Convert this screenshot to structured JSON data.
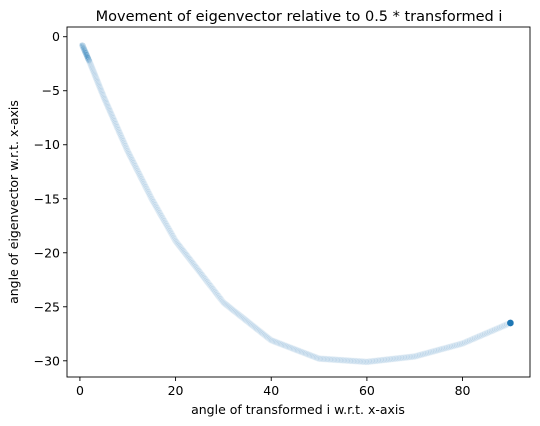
{
  "chart_data": {
    "type": "scatter",
    "title": "Movement of eigenvector relative to 0.5 * transformed i",
    "xlabel": "angle of transformed i w.r.t. x-axis",
    "ylabel": "angle of eigenvector w.r.t. x-axis",
    "xlim": [
      -2.7,
      94.1
    ],
    "ylim": [
      -31.5,
      0.9
    ],
    "xticks": [
      0,
      20,
      40,
      60,
      80
    ],
    "yticks": [
      0,
      -5,
      -10,
      -15,
      -20,
      -25,
      -30
    ],
    "grid": false,
    "curve_knots": {
      "x": [
        0.5,
        2,
        5,
        10,
        15,
        20,
        30,
        40,
        50,
        60,
        70,
        80,
        90
      ],
      "y": [
        -0.8,
        -2.3,
        -5.6,
        -10.6,
        -15.0,
        -18.9,
        -24.6,
        -28.1,
        -29.8,
        -30.1,
        -29.6,
        -28.4,
        -26.5
      ]
    },
    "point_count": 400,
    "start_cluster": {
      "x": [
        0.5,
        2.0
      ]
    },
    "highlight_point": {
      "x": 90,
      "y": -26.5
    },
    "colors": {
      "path_points": "#a9c8e2",
      "start_points": "#1f77b4",
      "highlight_point": "#1f77b4"
    }
  }
}
